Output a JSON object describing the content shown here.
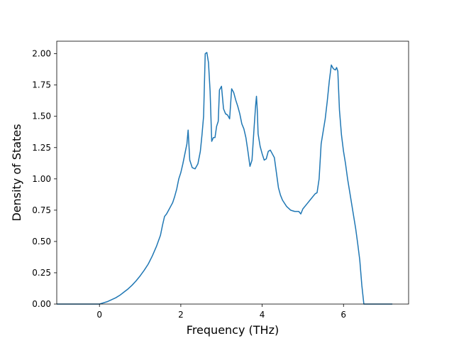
{
  "chart_data": {
    "type": "line",
    "title": "",
    "xlabel": "Frequency (THz)",
    "ylabel": "Density of States",
    "xlim": [
      -1.05,
      7.6
    ],
    "ylim": [
      0.0,
      2.1
    ],
    "xticks": [
      0,
      2,
      4,
      6
    ],
    "xtick_labels": [
      "0",
      "2",
      "4",
      "6"
    ],
    "yticks": [
      0.0,
      0.25,
      0.5,
      0.75,
      1.0,
      1.25,
      1.5,
      1.75,
      2.0
    ],
    "ytick_labels": [
      "0.00",
      "0.25",
      "0.50",
      "0.75",
      "1.00",
      "1.25",
      "1.50",
      "1.75",
      "2.00"
    ],
    "grid": false,
    "legend": "none",
    "colors": {
      "line": "#1f77b4"
    },
    "series": [
      {
        "x": [
          -1.05,
          -0.5,
          0.0,
          0.1,
          0.2,
          0.3,
          0.4,
          0.5,
          0.6,
          0.7,
          0.8,
          0.9,
          1.0,
          1.1,
          1.2,
          1.3,
          1.4,
          1.5,
          1.55,
          1.6,
          1.65,
          1.7,
          1.75,
          1.8,
          1.85,
          1.9,
          1.95,
          2.0,
          2.05,
          2.1,
          2.15,
          2.18,
          2.22,
          2.28,
          2.35,
          2.42,
          2.48,
          2.52,
          2.56,
          2.6,
          2.64,
          2.68,
          2.72,
          2.76,
          2.8,
          2.84,
          2.88,
          2.92,
          2.95,
          3.0,
          3.05,
          3.1,
          3.15,
          3.2,
          3.25,
          3.3,
          3.35,
          3.4,
          3.45,
          3.5,
          3.55,
          3.6,
          3.65,
          3.7,
          3.75,
          3.8,
          3.84,
          3.86,
          3.88,
          3.9,
          3.95,
          4.0,
          4.05,
          4.1,
          4.15,
          4.2,
          4.25,
          4.3,
          4.35,
          4.4,
          4.45,
          4.5,
          4.6,
          4.7,
          4.8,
          4.9,
          4.95,
          5.0,
          5.1,
          5.2,
          5.3,
          5.35,
          5.4,
          5.45,
          5.5,
          5.55,
          5.6,
          5.65,
          5.7,
          5.75,
          5.8,
          5.83,
          5.86,
          5.9,
          5.95,
          6.0,
          6.05,
          6.1,
          6.15,
          6.2,
          6.25,
          6.3,
          6.35,
          6.4,
          6.45,
          6.5,
          6.55,
          7.2
        ],
        "y": [
          0.0,
          0.0,
          0.0,
          0.01,
          0.02,
          0.035,
          0.05,
          0.07,
          0.095,
          0.12,
          0.15,
          0.185,
          0.225,
          0.27,
          0.32,
          0.385,
          0.46,
          0.55,
          0.63,
          0.7,
          0.72,
          0.75,
          0.78,
          0.81,
          0.86,
          0.92,
          1.0,
          1.05,
          1.12,
          1.2,
          1.28,
          1.39,
          1.15,
          1.09,
          1.08,
          1.12,
          1.22,
          1.35,
          1.5,
          2.0,
          2.01,
          1.93,
          1.7,
          1.3,
          1.33,
          1.33,
          1.42,
          1.46,
          1.71,
          1.74,
          1.56,
          1.52,
          1.51,
          1.48,
          1.72,
          1.69,
          1.63,
          1.58,
          1.52,
          1.44,
          1.4,
          1.33,
          1.22,
          1.1,
          1.15,
          1.4,
          1.59,
          1.66,
          1.55,
          1.36,
          1.26,
          1.2,
          1.15,
          1.16,
          1.22,
          1.23,
          1.2,
          1.17,
          1.05,
          0.93,
          0.87,
          0.83,
          0.78,
          0.75,
          0.74,
          0.74,
          0.72,
          0.76,
          0.8,
          0.84,
          0.88,
          0.89,
          1.0,
          1.28,
          1.38,
          1.48,
          1.62,
          1.78,
          1.91,
          1.88,
          1.87,
          1.89,
          1.86,
          1.55,
          1.35,
          1.22,
          1.12,
          1.0,
          0.9,
          0.8,
          0.7,
          0.6,
          0.48,
          0.35,
          0.15,
          0.0,
          0.0,
          0.0
        ]
      }
    ]
  }
}
